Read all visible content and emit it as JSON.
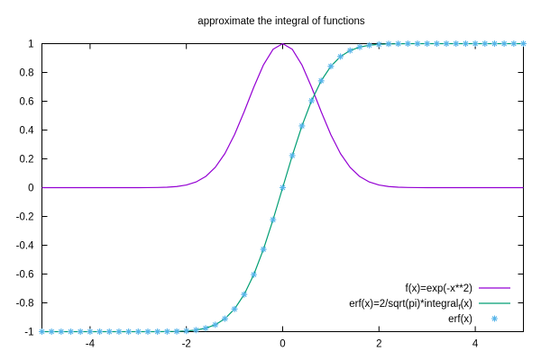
{
  "chart_data": {
    "type": "line",
    "title": "approximate the integral of functions",
    "xlabel": "",
    "ylabel": "",
    "xlim": [
      -5,
      5
    ],
    "ylim": [
      -1,
      1
    ],
    "x_ticks": [
      -4,
      -2,
      0,
      2,
      4
    ],
    "x_tick_labels": [
      "-4",
      "-2",
      "0",
      "2",
      "4"
    ],
    "y_ticks": [
      -1,
      -0.8,
      -0.6,
      -0.4,
      -0.2,
      0,
      0.2,
      0.4,
      0.6,
      0.8,
      1
    ],
    "y_tick_labels": [
      "-1",
      "-0.8",
      "-0.6",
      "-0.4",
      "-0.2",
      "0",
      "0.2",
      "0.4",
      "0.6",
      "0.8",
      "1"
    ],
    "grid": false,
    "legend_position": "bottom-right",
    "x": [
      -5.0,
      -4.8,
      -4.6,
      -4.4,
      -4.2,
      -4.0,
      -3.8,
      -3.6,
      -3.4,
      -3.2,
      -3.0,
      -2.8,
      -2.6,
      -2.4,
      -2.2,
      -2.0,
      -1.8,
      -1.6,
      -1.4,
      -1.2,
      -1.0,
      -0.8,
      -0.6,
      -0.4,
      -0.2,
      0.0,
      0.2,
      0.4,
      0.6,
      0.8,
      1.0,
      1.2,
      1.4,
      1.6,
      1.8,
      2.0,
      2.2,
      2.4,
      2.6,
      2.8,
      3.0,
      3.2,
      3.4,
      3.6,
      3.8,
      4.0,
      4.2,
      4.4,
      4.6,
      4.8,
      5.0
    ],
    "series": [
      {
        "name": "f(x)=exp(-x**2)",
        "style": "line",
        "color": "#9400d3",
        "values": [
          0.0,
          0.0,
          0.0,
          0.0,
          0.0,
          0.0,
          0.0,
          0.0,
          0.0,
          0.0,
          0.0001,
          0.0004,
          0.0012,
          0.0032,
          0.0079,
          0.0183,
          0.0392,
          0.0773,
          0.1409,
          0.2369,
          0.3679,
          0.5273,
          0.6977,
          0.8521,
          0.9608,
          1.0,
          0.9608,
          0.8521,
          0.6977,
          0.5273,
          0.3679,
          0.2369,
          0.1409,
          0.0773,
          0.0392,
          0.0183,
          0.0079,
          0.0032,
          0.0012,
          0.0004,
          0.0001,
          0.0,
          0.0,
          0.0,
          0.0,
          0.0,
          0.0,
          0.0,
          0.0,
          0.0,
          0.0
        ]
      },
      {
        "name": "erf(x)=2/sqrt(pi)*integral",
        "name_subscript": "f",
        "name_suffix": "(x)",
        "style": "line",
        "color": "#009e73",
        "values": [
          -1.0,
          -1.0,
          -1.0,
          -1.0,
          -1.0,
          -1.0,
          -1.0,
          -1.0,
          -1.0,
          -1.0,
          -1.0,
          -0.9999,
          -0.9998,
          -0.9993,
          -0.9981,
          -0.9953,
          -0.9891,
          -0.9763,
          -0.9523,
          -0.9103,
          -0.8427,
          -0.7421,
          -0.6039,
          -0.4284,
          -0.2227,
          0.0,
          0.2227,
          0.4284,
          0.6039,
          0.7421,
          0.8427,
          0.9103,
          0.9523,
          0.9763,
          0.9891,
          0.9953,
          0.9981,
          0.9993,
          0.9998,
          0.9999,
          1.0,
          1.0,
          1.0,
          1.0,
          1.0,
          1.0,
          1.0,
          1.0,
          1.0,
          1.0,
          1.0
        ]
      },
      {
        "name": "erf(x)",
        "style": "points",
        "color": "#56b4e9",
        "values": [
          -1.0,
          -1.0,
          -1.0,
          -1.0,
          -1.0,
          -1.0,
          -1.0,
          -1.0,
          -1.0,
          -1.0,
          -1.0,
          -0.9999,
          -0.9998,
          -0.9993,
          -0.9981,
          -0.9953,
          -0.9891,
          -0.9763,
          -0.9523,
          -0.9103,
          -0.8427,
          -0.7421,
          -0.6039,
          -0.4284,
          -0.2227,
          0.0,
          0.2227,
          0.4284,
          0.6039,
          0.7421,
          0.8427,
          0.9103,
          0.9523,
          0.9763,
          0.9891,
          0.9953,
          0.9981,
          0.9993,
          0.9998,
          0.9999,
          1.0,
          1.0,
          1.0,
          1.0,
          1.0,
          1.0,
          1.0,
          1.0,
          1.0,
          1.0,
          1.0
        ]
      }
    ]
  }
}
